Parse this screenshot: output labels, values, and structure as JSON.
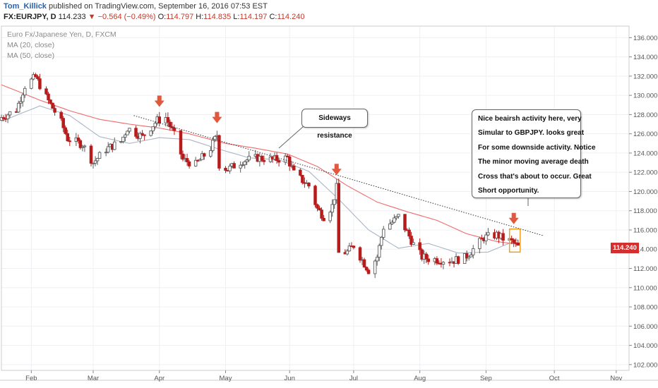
{
  "header": {
    "author": "Tom_Killick",
    "published": "published on TradingView.com, September 16, 2016 07:53 EST",
    "symbol": "FX:EURJPY, D",
    "last": "114.233",
    "change_arrow": "▼",
    "change": "−0.564 (−0.49%)",
    "o_label": "O:",
    "o_value": "114.797",
    "h_label": "H:",
    "h_value": "114.835",
    "l_label": "L:",
    "l_value": "114.197",
    "c_label": "C:",
    "c_value": "114.240"
  },
  "legend": {
    "title": "Euro Fx/Japanese Yen, D, FXCM",
    "ma20": "MA (20, close)",
    "ma50": "MA (50, close)"
  },
  "annotations": {
    "sideways": "Sideways resistance",
    "note_lines": [
      "Nice beairsh activity here, very",
      "Simular to GBPJPY. looks great",
      "For some downside activity. Notice",
      "The minor moving average death",
      "Cross that's about to occur. Great",
      "Short opportunity."
    ]
  },
  "price_label": "114.240",
  "colors": {
    "up": "#5e5e5e",
    "down": "#b71c1c",
    "ma20": "#a9b5c7",
    "ma50": "#ef6b6b",
    "arrow": "#e2583e",
    "highlight": "#f0a020"
  },
  "chart_data": {
    "type": "candlestick",
    "title": "Euro Fx/Japanese Yen, D, FXCM",
    "y_ticks": [
      "136.000",
      "134.000",
      "132.000",
      "130.000",
      "128.000",
      "126.000",
      "124.000",
      "122.000",
      "120.000",
      "118.000",
      "116.000",
      "114.000",
      "112.000",
      "110.000",
      "108.000",
      "106.000",
      "104.000",
      "102.000"
    ],
    "ylim": [
      101.4,
      137.2
    ],
    "x_ticks": [
      {
        "label": "Feb",
        "date": "2016-02-01"
      },
      {
        "label": "Mar",
        "date": "2016-03-01"
      },
      {
        "label": "Apr",
        "date": "2016-04-01"
      },
      {
        "label": "May",
        "date": "2016-05-02"
      },
      {
        "label": "Jun",
        "date": "2016-06-01"
      },
      {
        "label": "Jul",
        "date": "2016-07-01"
      },
      {
        "label": "Aug",
        "date": "2016-08-01"
      },
      {
        "label": "Sep",
        "date": "2016-09-01"
      },
      {
        "label": "Oct",
        "date": "2016-10-03"
      },
      {
        "label": "Nov",
        "date": "2016-11-01"
      }
    ],
    "date_range": [
      "2016-01-18",
      "2016-11-07"
    ],
    "close_anchors": [
      [
        "2016-01-18",
        127.7
      ],
      [
        "2016-01-25",
        128.5
      ],
      [
        "2016-01-29",
        131.0
      ],
      [
        "2016-02-03",
        131.9
      ],
      [
        "2016-02-08",
        129.8
      ],
      [
        "2016-02-15",
        127.2
      ],
      [
        "2016-02-18",
        125.5
      ],
      [
        "2016-02-25",
        124.9
      ],
      [
        "2016-03-01",
        123.0
      ],
      [
        "2016-03-07",
        124.4
      ],
      [
        "2016-03-14",
        125.2
      ],
      [
        "2016-03-17",
        126.6
      ],
      [
        "2016-03-24",
        125.7
      ],
      [
        "2016-03-31",
        127.4
      ],
      [
        "2016-04-04",
        127.7
      ],
      [
        "2016-04-08",
        125.9
      ],
      [
        "2016-04-12",
        123.3
      ],
      [
        "2016-04-18",
        122.8
      ],
      [
        "2016-04-25",
        124.5
      ],
      [
        "2016-04-28",
        125.9
      ],
      [
        "2016-04-29",
        122.8
      ],
      [
        "2016-05-03",
        122.3
      ],
      [
        "2016-05-10",
        123.2
      ],
      [
        "2016-05-17",
        123.5
      ],
      [
        "2016-05-24",
        123.3
      ],
      [
        "2016-05-31",
        123.5
      ],
      [
        "2016-06-03",
        121.9
      ],
      [
        "2016-06-10",
        120.6
      ],
      [
        "2016-06-14",
        118.2
      ],
      [
        "2016-06-17",
        117.4
      ],
      [
        "2016-06-21",
        118.5
      ],
      [
        "2016-06-23",
        120.4
      ],
      [
        "2016-06-24",
        113.6
      ],
      [
        "2016-06-28",
        113.7
      ],
      [
        "2016-07-01",
        114.4
      ],
      [
        "2016-07-06",
        112.5
      ],
      [
        "2016-07-08",
        111.8
      ],
      [
        "2016-07-12",
        113.2
      ],
      [
        "2016-07-15",
        116.3
      ],
      [
        "2016-07-19",
        116.8
      ],
      [
        "2016-07-22",
        117.4
      ],
      [
        "2016-07-26",
        115.8
      ],
      [
        "2016-07-29",
        114.5
      ],
      [
        "2016-08-02",
        113.2
      ],
      [
        "2016-08-05",
        113.0
      ],
      [
        "2016-08-10",
        112.9
      ],
      [
        "2016-08-16",
        112.8
      ],
      [
        "2016-08-22",
        113.1
      ],
      [
        "2016-08-26",
        114.0
      ],
      [
        "2016-08-31",
        115.2
      ],
      [
        "2016-09-06",
        115.5
      ],
      [
        "2016-09-09",
        115.1
      ],
      [
        "2016-09-13",
        114.8
      ],
      [
        "2016-09-16",
        114.24
      ]
    ],
    "ma20_anchors": [
      [
        "2016-01-18",
        127.3
      ],
      [
        "2016-02-05",
        128.9
      ],
      [
        "2016-02-19",
        127.9
      ],
      [
        "2016-03-04",
        125.7
      ],
      [
        "2016-03-18",
        125.0
      ],
      [
        "2016-04-01",
        125.6
      ],
      [
        "2016-04-15",
        125.4
      ],
      [
        "2016-04-29",
        124.4
      ],
      [
        "2016-05-13",
        123.5
      ],
      [
        "2016-05-27",
        123.3
      ],
      [
        "2016-06-10",
        122.1
      ],
      [
        "2016-06-24",
        119.2
      ],
      [
        "2016-07-08",
        116.0
      ],
      [
        "2016-07-22",
        114.1
      ],
      [
        "2016-08-05",
        114.6
      ],
      [
        "2016-08-19",
        113.6
      ],
      [
        "2016-09-02",
        113.7
      ],
      [
        "2016-09-16",
        115.0
      ]
    ],
    "ma50_anchors": [
      [
        "2016-01-18",
        131.1
      ],
      [
        "2016-02-05",
        129.5
      ],
      [
        "2016-02-19",
        128.4
      ],
      [
        "2016-03-04",
        127.5
      ],
      [
        "2016-03-18",
        127.0
      ],
      [
        "2016-04-01",
        126.6
      ],
      [
        "2016-04-15",
        126.0
      ],
      [
        "2016-05-02",
        125.0
      ],
      [
        "2016-05-16",
        124.5
      ],
      [
        "2016-05-31",
        123.9
      ],
      [
        "2016-06-14",
        122.6
      ],
      [
        "2016-06-28",
        120.6
      ],
      [
        "2016-07-12",
        118.9
      ],
      [
        "2016-07-26",
        117.9
      ],
      [
        "2016-08-09",
        117.0
      ],
      [
        "2016-08-23",
        115.6
      ],
      [
        "2016-09-06",
        114.8
      ],
      [
        "2016-09-16",
        114.5
      ]
    ],
    "trendline": [
      [
        "2016-03-20",
        127.9
      ],
      [
        "2016-09-28",
        115.4
      ]
    ],
    "sell_arrows": [
      "2016-04-01",
      "2016-04-28",
      "2016-06-23",
      "2016-09-14"
    ],
    "highlight_box": {
      "from": "2016-09-12",
      "to": "2016-09-17",
      "low": 113.7,
      "high": 116.1
    }
  }
}
